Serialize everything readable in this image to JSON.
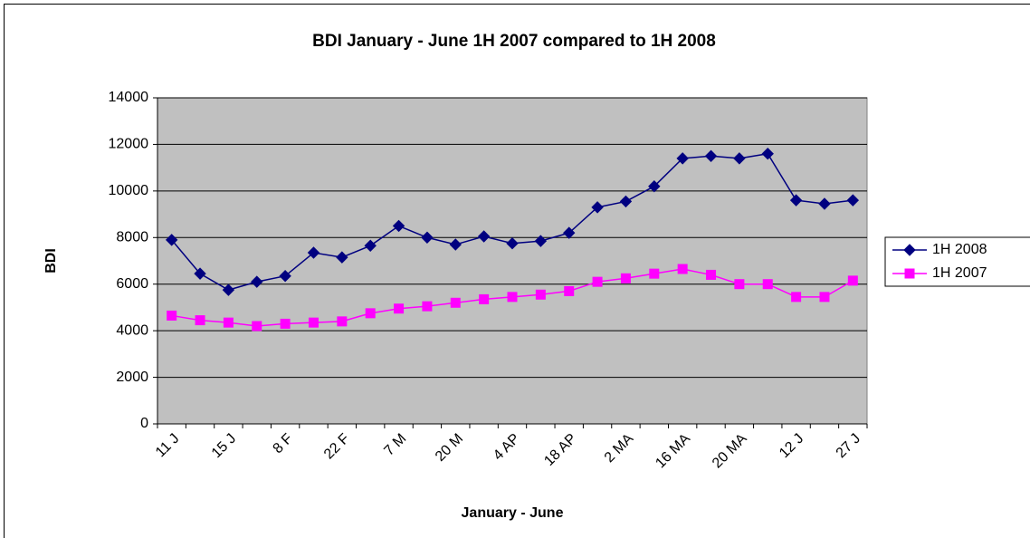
{
  "chart_data": {
    "type": "line",
    "title": "BDI January - June 1H 2007 compared to 1H 2008",
    "x_label": "January - June",
    "y_label": "BDI",
    "categories": [
      "11 J",
      null,
      "15 J",
      null,
      "8 F",
      null,
      "22 F",
      null,
      "7 M",
      null,
      "20 M",
      null,
      "4 AP",
      null,
      "18 AP",
      null,
      "2 MA",
      null,
      "16 MA",
      null,
      "20 MA",
      null,
      "12 J",
      null,
      "27 J"
    ],
    "series": [
      {
        "name": "1H 2008",
        "color": "#000080",
        "marker": "diamond",
        "values": [
          7900,
          6450,
          5750,
          6100,
          6350,
          7350,
          7150,
          7650,
          8500,
          8000,
          7700,
          8050,
          7750,
          7850,
          8200,
          9300,
          9550,
          10200,
          11400,
          11500,
          11400,
          11600,
          9600,
          9450,
          9600
        ]
      },
      {
        "name": "1H 2007",
        "color": "#ff00ff",
        "marker": "square",
        "values": [
          4650,
          4450,
          4350,
          4200,
          4300,
          4350,
          4400,
          4750,
          4950,
          5050,
          5200,
          5350,
          5450,
          5550,
          5700,
          6100,
          6250,
          6450,
          6650,
          6400,
          6000,
          6000,
          5450,
          5450,
          6150
        ]
      }
    ],
    "ylim": [
      0,
      14000
    ],
    "yticks": [
      0,
      2000,
      4000,
      6000,
      8000,
      10000,
      12000,
      14000
    ],
    "grid": true,
    "legend": "right"
  }
}
